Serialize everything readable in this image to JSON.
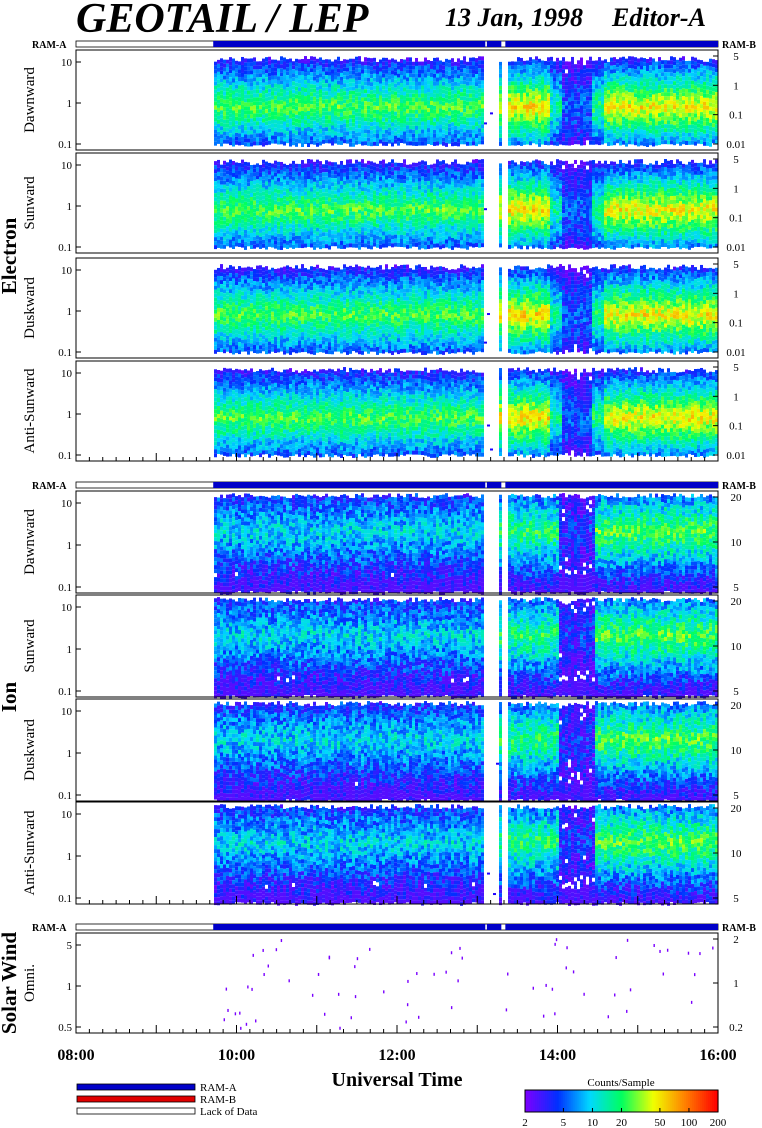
{
  "header": {
    "title": "GEOTAIL / LEP",
    "date": "13 Jan, 1998",
    "editor": "Editor-A"
  },
  "colors": {
    "ram_a": "#0000c8",
    "ram_b": "#e00000",
    "lack_of_data": "#ffffff",
    "frame": "#000000"
  },
  "chart_data": {
    "type": "heatmap",
    "time_axis": {
      "label": "Universal Time",
      "range_hours": [
        8,
        16
      ],
      "tick_labels": [
        "08:00",
        "10:00",
        "12:00",
        "14:00",
        "16:00"
      ],
      "minor_ticks_per_hour": 6
    },
    "mode_bar_labels": {
      "left": "RAM-A",
      "right": "RAM-B"
    },
    "mode_segments": [
      {
        "mode": "lack_of_data",
        "start": 8.0,
        "end": 9.71
      },
      {
        "mode": "ram_a",
        "start": 9.71,
        "end": 13.1
      },
      {
        "mode": "lack_of_data",
        "start": 13.1,
        "end": 13.12
      },
      {
        "mode": "ram_a",
        "start": 13.12,
        "end": 13.3
      },
      {
        "mode": "lack_of_data",
        "start": 13.3,
        "end": 13.35
      },
      {
        "mode": "ram_a",
        "start": 13.35,
        "end": 16.0
      }
    ],
    "groups": [
      {
        "name": "Electron",
        "left_ticks": [
          "10",
          "1",
          "0.1"
        ],
        "right_ticks": [
          "5",
          "1",
          "0.1",
          "0.01"
        ],
        "panels": [
          {
            "label": "Dawnward"
          },
          {
            "label": "Sunward"
          },
          {
            "label": "Duskward"
          },
          {
            "label": "Anti-Sunward"
          }
        ]
      },
      {
        "name": "Ion",
        "left_ticks": [
          "10",
          "1",
          "0.1"
        ],
        "right_ticks": [
          "20",
          "10",
          "5"
        ],
        "panels": [
          {
            "label": "Dawnward"
          },
          {
            "label": "Sunward"
          },
          {
            "label": "Duskward"
          },
          {
            "label": "Anti-Sunward"
          }
        ]
      },
      {
        "name": "Solar Wind",
        "left_ticks": [
          "5",
          "1",
          "0.5"
        ],
        "right_ticks": [
          "2",
          "1",
          "0.2"
        ],
        "panels": [
          {
            "label": "Omni."
          }
        ]
      }
    ],
    "electron_activity": [
      {
        "start": 9.71,
        "end": 13.05,
        "level": 0.55
      },
      {
        "start": 13.25,
        "end": 13.9,
        "level": 0.72
      },
      {
        "start": 13.9,
        "end": 14.05,
        "level": 0.45
      },
      {
        "start": 14.05,
        "end": 14.4,
        "level": 0.22
      },
      {
        "start": 14.4,
        "end": 14.55,
        "level": 0.5
      },
      {
        "start": 14.55,
        "end": 16.0,
        "level": 0.7
      }
    ],
    "ion_activity": [
      {
        "start": 9.71,
        "end": 13.05,
        "level": 0.35
      },
      {
        "start": 13.25,
        "end": 14.0,
        "level": 0.5
      },
      {
        "start": 14.0,
        "end": 14.45,
        "level": 0.15
      },
      {
        "start": 14.45,
        "end": 16.0,
        "level": 0.55
      }
    ],
    "colorbar": {
      "title": "Counts/Sample",
      "scale": "log",
      "range": [
        2,
        200
      ],
      "tick_labels": [
        "2",
        "5",
        "10",
        "20",
        "50",
        "100",
        "200"
      ],
      "colors": [
        "#7a00ff",
        "#0030ff",
        "#00d8ff",
        "#00ff60",
        "#f0ff00",
        "#ff8000",
        "#ff0000"
      ]
    },
    "legend": [
      {
        "key": "ram_a",
        "label": "RAM-A"
      },
      {
        "key": "ram_b",
        "label": "RAM-B"
      },
      {
        "key": "lack_of_data",
        "label": "Lack of Data"
      }
    ]
  }
}
